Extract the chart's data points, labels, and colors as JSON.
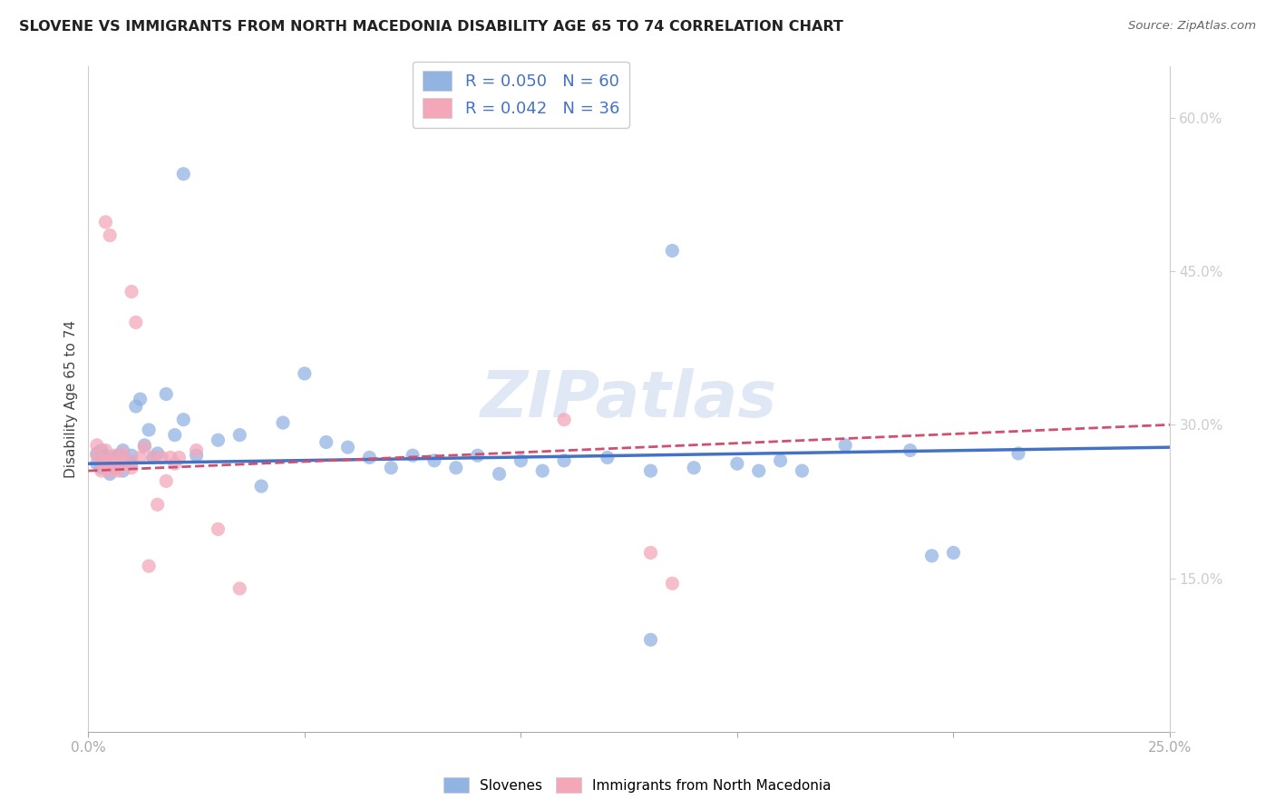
{
  "title": "SLOVENE VS IMMIGRANTS FROM NORTH MACEDONIA DISABILITY AGE 65 TO 74 CORRELATION CHART",
  "source": "Source: ZipAtlas.com",
  "ylabel": "Disability Age 65 to 74",
  "xlim": [
    0.0,
    0.25
  ],
  "ylim": [
    0.0,
    0.65
  ],
  "xtick_vals": [
    0.0,
    0.05,
    0.1,
    0.15,
    0.2,
    0.25
  ],
  "xticklabels": [
    "0.0%",
    "",
    "",
    "",
    "",
    "25.0%"
  ],
  "ytick_vals": [
    0.0,
    0.15,
    0.3,
    0.45,
    0.6
  ],
  "yticklabels": [
    "",
    "15.0%",
    "30.0%",
    "45.0%",
    "60.0%"
  ],
  "blue_color": "#92b4e3",
  "pink_color": "#f4a7b9",
  "blue_line_color": "#4472c4",
  "pink_line_color": "#d05070",
  "legend_text1": "R = 0.050   N = 60",
  "legend_text2": "R = 0.042   N = 36",
  "watermark": "ZIPatlas",
  "blue_scatter_x": [
    0.022,
    0.135,
    0.002,
    0.002,
    0.003,
    0.003,
    0.003,
    0.004,
    0.004,
    0.005,
    0.005,
    0.006,
    0.006,
    0.007,
    0.007,
    0.008,
    0.008,
    0.009,
    0.01,
    0.01,
    0.011,
    0.012,
    0.013,
    0.014,
    0.015,
    0.016,
    0.018,
    0.02,
    0.022,
    0.025,
    0.03,
    0.035,
    0.04,
    0.045,
    0.05,
    0.055,
    0.06,
    0.065,
    0.07,
    0.075,
    0.08,
    0.085,
    0.09,
    0.095,
    0.1,
    0.105,
    0.11,
    0.12,
    0.13,
    0.14,
    0.15,
    0.155,
    0.16,
    0.165,
    0.175,
    0.19,
    0.195,
    0.2,
    0.13,
    0.215
  ],
  "blue_scatter_y": [
    0.545,
    0.47,
    0.262,
    0.272,
    0.258,
    0.265,
    0.275,
    0.26,
    0.27,
    0.265,
    0.252,
    0.258,
    0.268,
    0.26,
    0.27,
    0.255,
    0.275,
    0.265,
    0.263,
    0.27,
    0.318,
    0.325,
    0.28,
    0.295,
    0.268,
    0.272,
    0.33,
    0.29,
    0.305,
    0.27,
    0.285,
    0.29,
    0.24,
    0.302,
    0.35,
    0.283,
    0.278,
    0.268,
    0.258,
    0.27,
    0.265,
    0.258,
    0.27,
    0.252,
    0.265,
    0.255,
    0.265,
    0.268,
    0.255,
    0.258,
    0.262,
    0.255,
    0.265,
    0.255,
    0.28,
    0.275,
    0.172,
    0.175,
    0.09,
    0.272
  ],
  "pink_scatter_x": [
    0.004,
    0.005,
    0.002,
    0.002,
    0.003,
    0.003,
    0.004,
    0.004,
    0.005,
    0.005,
    0.006,
    0.006,
    0.007,
    0.007,
    0.008,
    0.008,
    0.009,
    0.01,
    0.01,
    0.011,
    0.012,
    0.013,
    0.014,
    0.015,
    0.016,
    0.017,
    0.018,
    0.019,
    0.02,
    0.021,
    0.025,
    0.11,
    0.13,
    0.135,
    0.03,
    0.035
  ],
  "pink_scatter_y": [
    0.498,
    0.485,
    0.28,
    0.27,
    0.265,
    0.255,
    0.26,
    0.275,
    0.265,
    0.255,
    0.27,
    0.26,
    0.265,
    0.255,
    0.272,
    0.262,
    0.265,
    0.258,
    0.43,
    0.4,
    0.268,
    0.278,
    0.162,
    0.268,
    0.222,
    0.268,
    0.245,
    0.268,
    0.262,
    0.268,
    0.275,
    0.305,
    0.175,
    0.145,
    0.198,
    0.14
  ],
  "blue_line_x": [
    0.0,
    0.25
  ],
  "blue_line_y": [
    0.262,
    0.278
  ],
  "pink_line_x": [
    0.0,
    0.25
  ],
  "pink_line_y": [
    0.255,
    0.3
  ]
}
